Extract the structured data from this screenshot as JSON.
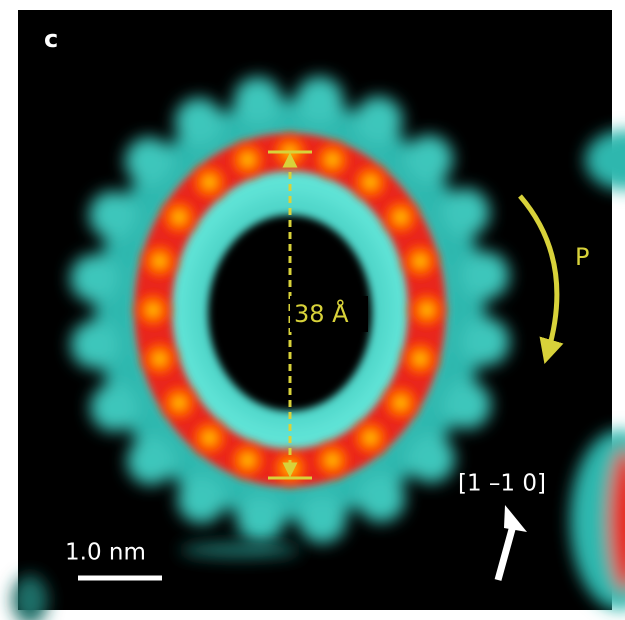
{
  "panel_label": "c",
  "annotations": {
    "diameter": "38 Å",
    "rotation": "P",
    "direction": "[1 –1 0]",
    "scale_bar": "1.0 nm"
  }
}
